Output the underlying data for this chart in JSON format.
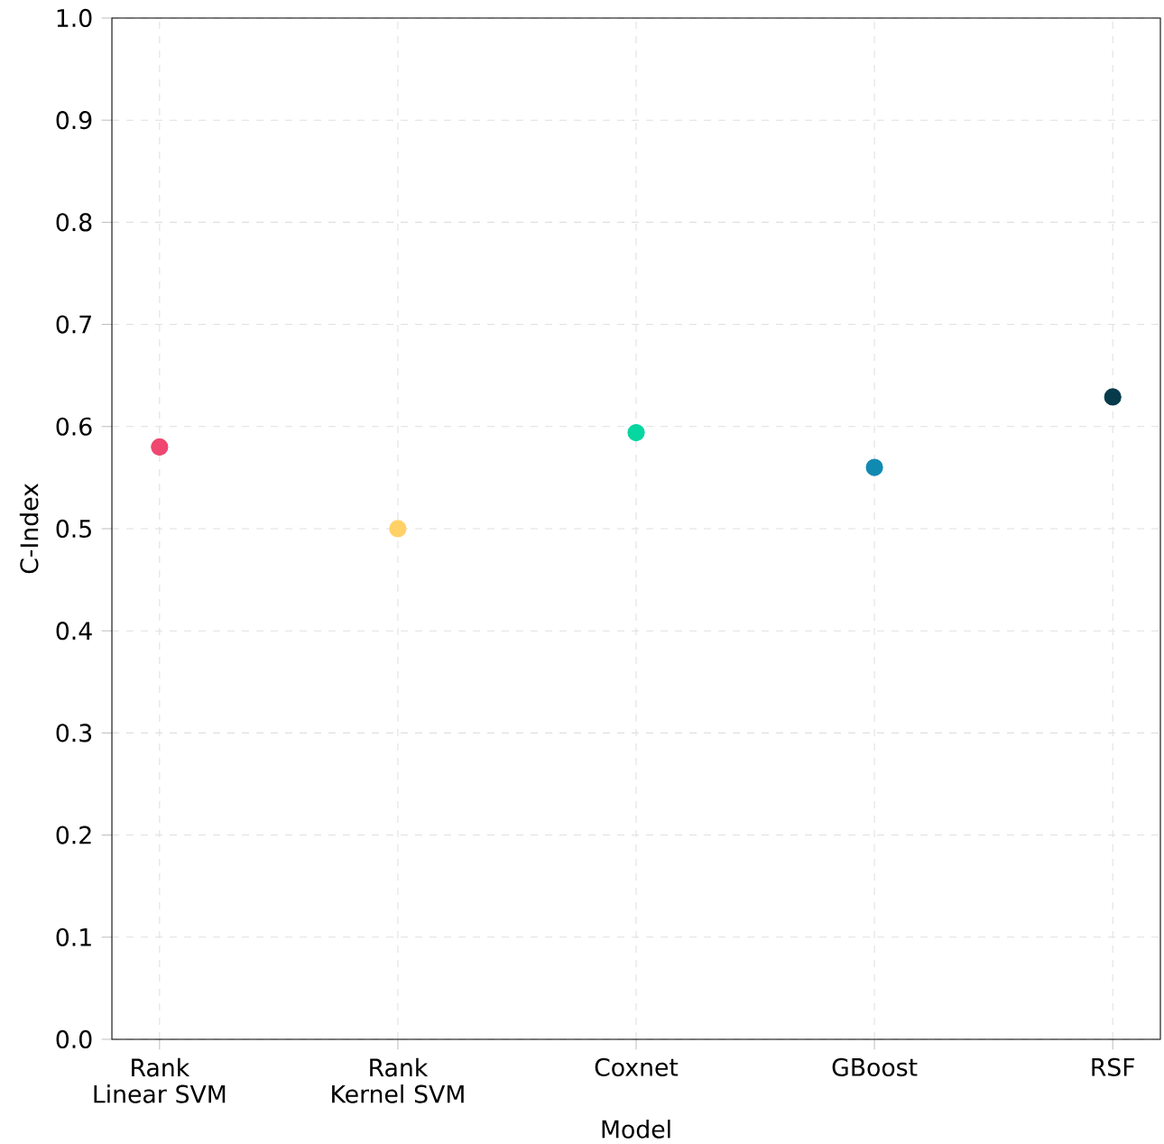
{
  "chart_data": {
    "type": "scatter",
    "xlabel": "Model",
    "ylabel": "C-Index",
    "categories": [
      "Rank Linear SVM",
      "Rank Kernel SVM",
      "Coxnet",
      "GBoost",
      "RSF"
    ],
    "values": [
      0.58,
      0.5,
      0.594,
      0.56,
      0.629
    ],
    "colors": [
      "#ef476f",
      "#ffd166",
      "#06d6a0",
      "#118ab2",
      "#073b4c"
    ],
    "ylim": [
      0,
      1
    ],
    "yticks": [
      {
        "value": 0,
        "label": "0.0"
      },
      0.1,
      0.2,
      0.3,
      0.4,
      0.5,
      0.6,
      0.7,
      0.8,
      0.9,
      {
        "value": 1,
        "label": "1.0"
      }
    ],
    "grid": true,
    "marker": "circle"
  }
}
